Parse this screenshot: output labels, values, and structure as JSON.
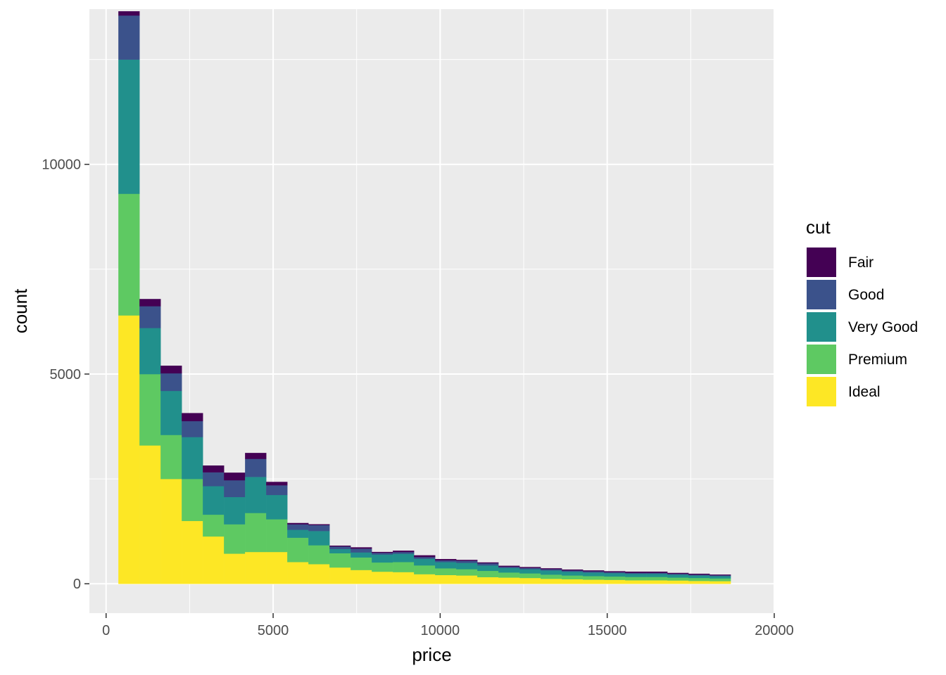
{
  "chart_data": {
    "type": "bar",
    "stacked": true,
    "histogram": true,
    "xlabel": "price",
    "ylabel": "count",
    "xlim": [
      -500,
      20000
    ],
    "ylim": [
      -700,
      13700
    ],
    "x_ticks": [
      0,
      5000,
      10000,
      15000,
      20000
    ],
    "y_ticks": [
      0,
      5000,
      10000
    ],
    "x_tick_labels": [
      "0",
      "5000",
      "10000",
      "15000",
      "20000"
    ],
    "y_tick_labels": [
      "0",
      "5000",
      "10000"
    ],
    "grid": true,
    "legend_title": "cut",
    "legend_position": "right",
    "bin_width": 632,
    "bin_edges": [
      367,
      999,
      1631,
      2263,
      2895,
      3527,
      4159,
      4791,
      5423,
      6055,
      6687,
      7319,
      7951,
      8583,
      9215,
      9847,
      10479,
      11111,
      11743,
      12375,
      13007,
      13639,
      14271,
      14903,
      15535,
      16167,
      16799,
      17431,
      18063,
      18695
    ],
    "stack_order": [
      "Ideal",
      "Premium",
      "Very Good",
      "Good",
      "Fair"
    ],
    "series": [
      {
        "name": "Ideal",
        "color": "#FDE725",
        "values": [
          6400,
          3300,
          2500,
          1500,
          1130,
          720,
          760,
          760,
          520,
          470,
          390,
          330,
          290,
          280,
          230,
          210,
          200,
          160,
          150,
          140,
          120,
          110,
          100,
          95,
          85,
          85,
          80,
          70,
          65
        ]
      },
      {
        "name": "Premium",
        "color": "#5EC962",
        "values": [
          2900,
          1700,
          1050,
          1000,
          520,
          700,
          930,
          780,
          580,
          450,
          340,
          300,
          220,
          240,
          210,
          160,
          150,
          150,
          120,
          110,
          100,
          90,
          85,
          80,
          80,
          80,
          70,
          70,
          65
        ]
      },
      {
        "name": "Very Good",
        "color": "#21908C",
        "values": [
          3200,
          1100,
          1050,
          1000,
          680,
          650,
          860,
          580,
          190,
          340,
          100,
          120,
          190,
          200,
          160,
          150,
          150,
          130,
          110,
          100,
          100,
          90,
          85,
          80,
          75,
          75,
          70,
          60,
          55
        ]
      },
      {
        "name": "Good",
        "color": "#3B528B",
        "values": [
          1050,
          520,
          420,
          380,
          330,
          400,
          430,
          230,
          130,
          140,
          60,
          90,
          40,
          40,
          40,
          40,
          50,
          50,
          30,
          30,
          30,
          30,
          30,
          25,
          25,
          25,
          20,
          20,
          20
        ]
      },
      {
        "name": "Fair",
        "color": "#440154",
        "values": [
          100,
          170,
          180,
          190,
          160,
          180,
          140,
          80,
          30,
          20,
          20,
          30,
          20,
          30,
          40,
          30,
          20,
          20,
          20,
          20,
          20,
          20,
          20,
          20,
          25,
          25,
          20,
          20,
          15
        ]
      }
    ]
  }
}
